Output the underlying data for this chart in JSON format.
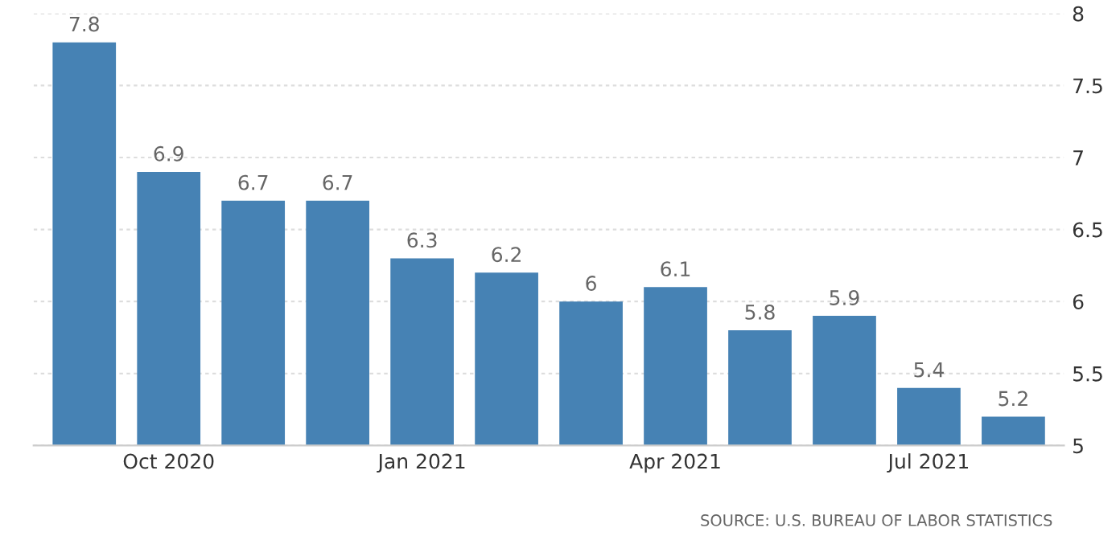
{
  "chart_data": {
    "type": "bar",
    "categories": [
      null,
      "Oct 2020",
      null,
      null,
      "Jan 2021",
      null,
      null,
      "Apr 2021",
      null,
      null,
      "Jul 2021",
      null
    ],
    "values": [
      7.8,
      6.9,
      6.7,
      6.7,
      6.3,
      6.2,
      6,
      6.1,
      5.8,
      5.9,
      5.4,
      5.2
    ],
    "color": "#4682b4",
    "ylim": [
      5,
      8
    ],
    "yticks": [
      5,
      5.5,
      6,
      6.5,
      7,
      7.5,
      8
    ],
    "grid": "y",
    "data_labels": true,
    "annotations": [
      "SOURCE: U.S. BUREAU OF LABOR STATISTICS"
    ]
  }
}
